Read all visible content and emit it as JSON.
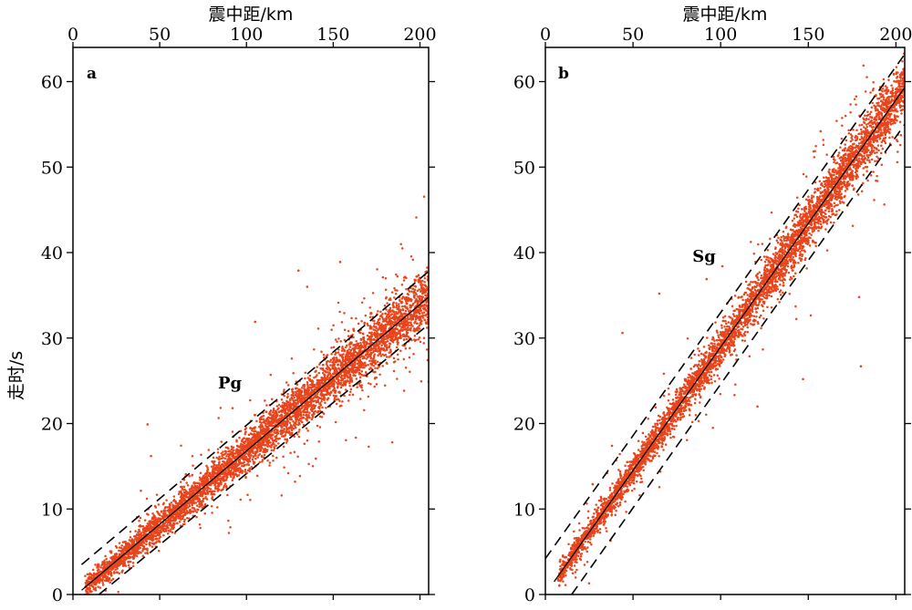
{
  "chart_data": [
    {
      "type": "scatter",
      "panel_label": "a",
      "phase_label": "Pg",
      "xlabel": "震中距/km",
      "ylabel": "走时/s",
      "xlim": [
        0,
        205
      ],
      "ylim": [
        0,
        64
      ],
      "xticks": [
        0,
        50,
        100,
        150,
        200
      ],
      "yticks": [
        0,
        10,
        20,
        30,
        40,
        50,
        60
      ],
      "fit_line": {
        "x": [
          5,
          205
        ],
        "y": [
          0.5,
          34.8
        ]
      },
      "bounds_upper": {
        "x": [
          5,
          205
        ],
        "y": [
          3.5,
          37.8
        ]
      },
      "bounds_lower": {
        "x": [
          15,
          205
        ],
        "y": [
          0.0,
          31.6
        ]
      },
      "scatter_color": "#e8451c",
      "outliers": [
        {
          "x": 130,
          "y": 37.9
        },
        {
          "x": 135,
          "y": 36.0
        },
        {
          "x": 154,
          "y": 38.9
        },
        {
          "x": 105,
          "y": 31.9
        },
        {
          "x": 43,
          "y": 19.9
        },
        {
          "x": 45,
          "y": 16.2
        },
        {
          "x": 128,
          "y": 13.2
        },
        {
          "x": 205,
          "y": 24.9
        },
        {
          "x": 92,
          "y": 21.8
        },
        {
          "x": 140,
          "y": 15.9
        },
        {
          "x": 175,
          "y": 24.6
        }
      ]
    },
    {
      "type": "scatter",
      "panel_label": "b",
      "phase_label": "Sg",
      "xlabel": "震中距/km",
      "ylabel": "",
      "xlim": [
        0,
        205
      ],
      "ylim": [
        0,
        64
      ],
      "xticks": [
        0,
        50,
        100,
        150,
        200
      ],
      "yticks": [
        0,
        10,
        20,
        30,
        40,
        50,
        60
      ],
      "fit_line": {
        "x": [
          5,
          205
        ],
        "y": [
          1.5,
          59.3
        ]
      },
      "bounds_upper": {
        "x": [
          0,
          205
        ],
        "y": [
          4.2,
          63.2
        ]
      },
      "bounds_lower": {
        "x": [
          15,
          205
        ],
        "y": [
          0.0,
          55.0
        ]
      },
      "scatter_color": "#e8451c",
      "outliers": [
        {
          "x": 101,
          "y": 38.4
        },
        {
          "x": 92,
          "y": 36.9
        },
        {
          "x": 44,
          "y": 30.6
        },
        {
          "x": 147,
          "y": 25.2
        },
        {
          "x": 180,
          "y": 26.7
        },
        {
          "x": 179,
          "y": 34.8
        },
        {
          "x": 38,
          "y": 17.4
        },
        {
          "x": 121,
          "y": 22.0
        },
        {
          "x": 27,
          "y": 12.9
        },
        {
          "x": 157,
          "y": 54.2
        },
        {
          "x": 65,
          "y": 35.2
        }
      ]
    }
  ]
}
